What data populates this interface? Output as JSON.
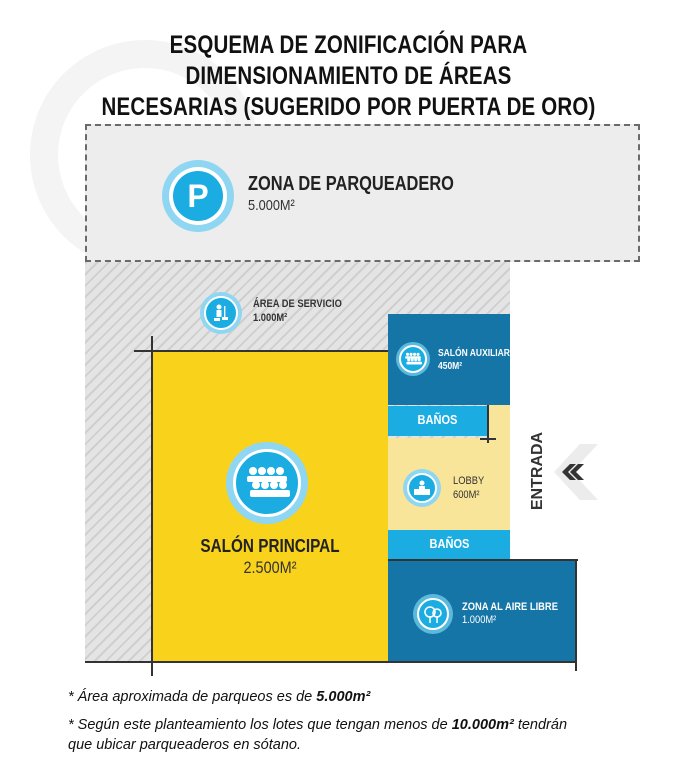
{
  "title": {
    "line1": "ESQUEMA DE ZONIFICACIÓN PARA DIMENSIONAMIENTO DE ÁREAS",
    "line2": "NECESARIAS (SUGERIDO POR PUERTA DE ORO)"
  },
  "zones": {
    "parqueadero": {
      "name": "ZONA DE PARQUEADERO",
      "area": "5.000M²",
      "icon": "parking-icon",
      "letter": "P"
    },
    "servicio": {
      "name": "ÁREA DE SERVICIO",
      "area": "1.000M²",
      "icon": "janitor-icon"
    },
    "salon_auxiliar": {
      "name": "SALÓN AUXILIAR",
      "area": "450M²",
      "icon": "audience-icon"
    },
    "banos_top": {
      "name": "BAÑOS"
    },
    "lobby": {
      "name": "LOBBY",
      "area": "600M²",
      "icon": "reception-desk-icon"
    },
    "banos_bottom": {
      "name": "BAÑOS"
    },
    "salon_principal": {
      "name": "SALÓN PRINCIPAL",
      "area": "2.500M²",
      "icon": "audience-icon"
    },
    "aire_libre": {
      "name": "ZONA AL AIRE LIBRE",
      "area": "1.000M²",
      "icon": "tree-icon"
    }
  },
  "entrance": {
    "label": "ENTRADA",
    "icon": "double-chevron-left-icon"
  },
  "notes": {
    "note1_pre": "* Área aproximada de parqueos es de ",
    "note1_bold": "5.000m²",
    "note2_pre": "* Según este planteamiento los lotes que tengan menos de ",
    "note2_bold": "10.000m²",
    "note2_post": " tendrán",
    "note2_line2": "que ubicar parqueaderos en sótano."
  },
  "colors": {
    "yellow": "#f9d21c",
    "light_yellow": "#f9e59a",
    "dark_blue": "#1475a6",
    "light_blue": "#1bace2",
    "gray": "#ededed"
  }
}
